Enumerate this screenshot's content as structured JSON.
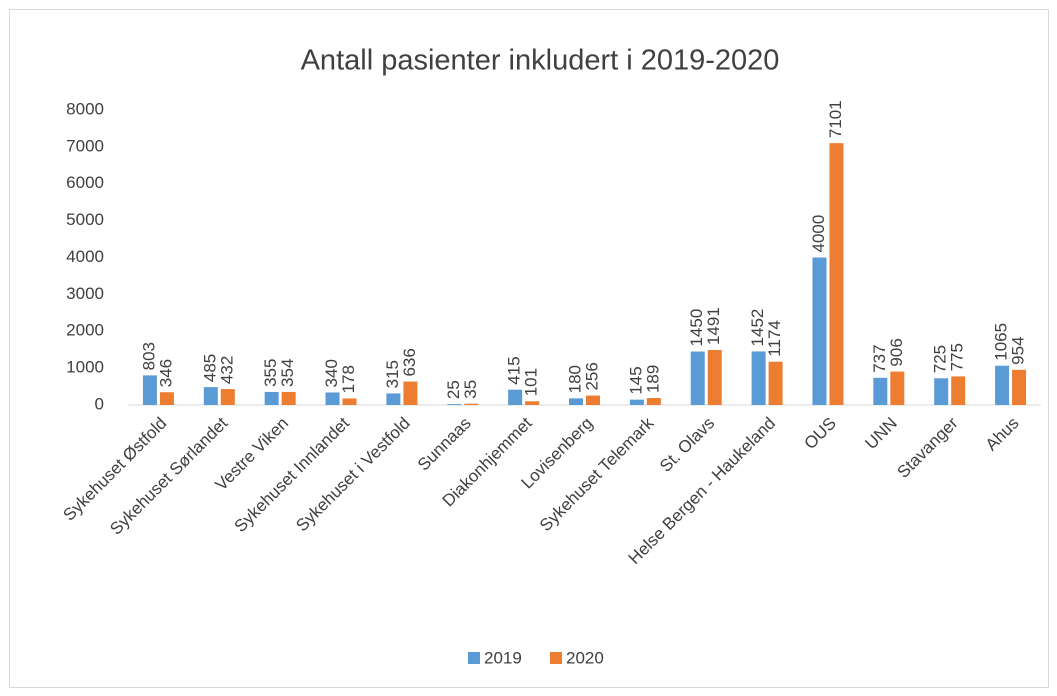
{
  "chart_data": {
    "type": "bar",
    "title": "Antall pasienter inkludert i 2019-2020",
    "categories": [
      "Sykehuset Østfold",
      "Sykehuset Sørlandet",
      "Vestre Viken",
      "Sykehuset Innlandet",
      "Sykehuset i Vestfold",
      "Sunnaas",
      "Diakonhjemmet",
      "Lovisenberg",
      "Sykehuset Telemark",
      "St. Olavs",
      "Helse Bergen - Haukeland",
      "OUS",
      "UNN",
      "Stavanger",
      "Ahus"
    ],
    "series": [
      {
        "name": "2019",
        "color": "#5b9bd5",
        "values": [
          803,
          485,
          355,
          340,
          315,
          25,
          415,
          180,
          145,
          1450,
          1452,
          4000,
          737,
          725,
          1065
        ]
      },
      {
        "name": "2020",
        "color": "#ed7d31",
        "values": [
          346,
          432,
          354,
          178,
          636,
          35,
          101,
          256,
          189,
          1491,
          1174,
          7101,
          906,
          775,
          954
        ]
      }
    ],
    "ylim": [
      0,
      8000
    ],
    "yticks": [
      0,
      1000,
      2000,
      3000,
      4000,
      5000,
      6000,
      7000,
      8000
    ],
    "grid": false,
    "legend": "bottom"
  }
}
